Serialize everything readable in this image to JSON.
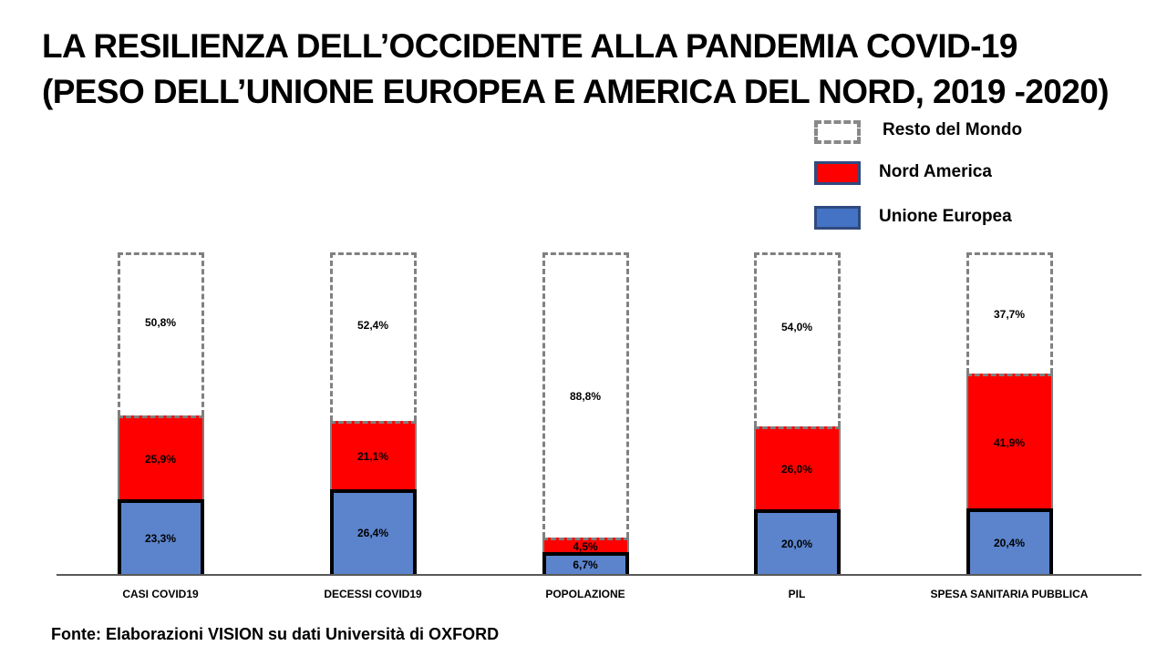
{
  "title": {
    "line1": "LA RESILIENZA DELL’OCCIDENTE ALLA PANDEMIA COVID-19",
    "line2": "(PESO DELL’UNIONE EUROPEA E AMERICA DEL NORD, 2019 -2020)"
  },
  "legend": {
    "items": [
      {
        "label": "Resto del Mondo",
        "style": "dashed-outline",
        "color": "#888888"
      },
      {
        "label": "Nord America",
        "color": "#ff0000"
      },
      {
        "label": "Unione Europea",
        "color": "#4472c4"
      }
    ]
  },
  "source": "Fonte: Elaborazioni VISION su dati Università di OXFORD",
  "colors": {
    "unione_europea": "#5b84cc",
    "nord_america": "#ff0000",
    "resto_del_mondo": "#ffffff",
    "resto_border": "#808080"
  },
  "chart_data": {
    "type": "bar",
    "stacked": true,
    "percent_stacked": true,
    "title": "LA RESILIENZA DELL’OCCIDENTE ALLA PANDEMIA COVID-19 (PESO DELL’UNIONE EUROPEA E AMERICA DEL NORD, 2019 -2020)",
    "xlabel": "",
    "ylabel": "",
    "ylim": [
      0,
      100
    ],
    "grid": false,
    "legend_position": "top-right",
    "categories": [
      "CASI COVID19",
      "DECESSI COVID19",
      "POPOLAZIONE",
      "PIL",
      "SPESA SANITARIA PUBBLICA"
    ],
    "series": [
      {
        "name": "Unione Europea",
        "values": [
          23.3,
          26.4,
          6.7,
          20.0,
          20.4
        ],
        "labels": [
          "23,3%",
          "26,4%",
          "6,7%",
          "20,0%",
          "20,4%"
        ]
      },
      {
        "name": "Nord America",
        "values": [
          25.9,
          21.1,
          4.5,
          26.0,
          41.9
        ],
        "labels": [
          "25,9%",
          "21,1%",
          "4,5%",
          "26,0%",
          "41,9%"
        ]
      },
      {
        "name": "Resto del Mondo",
        "values": [
          50.8,
          52.4,
          88.8,
          54.0,
          37.7
        ],
        "labels": [
          "50,8%",
          "52,4%",
          "88,8%",
          "54,0%",
          "37,7%"
        ]
      }
    ],
    "source": "Fonte: Elaborazioni VISION su dati Università di OXFORD"
  }
}
